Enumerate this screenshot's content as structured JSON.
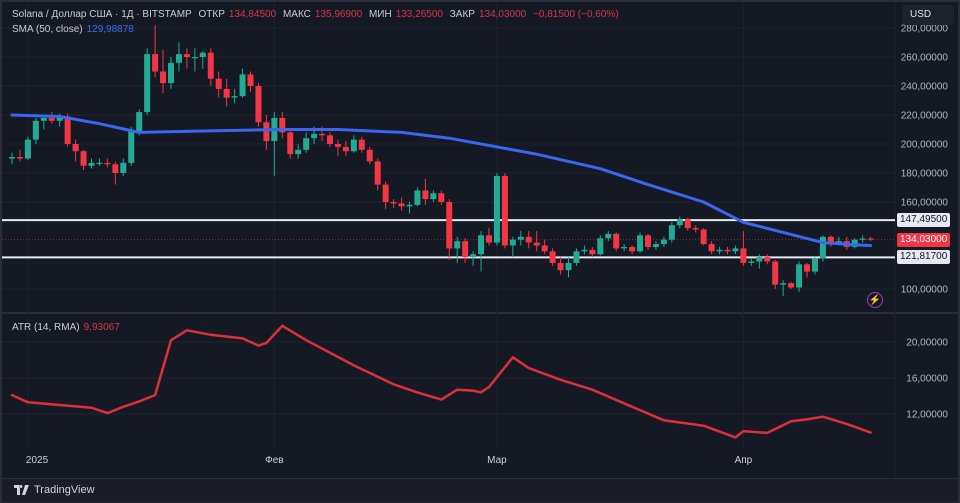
{
  "header": {
    "symbol": "Solana / Доллар США · 1Д · BITSTAMP",
    "open_label": "ОТКР",
    "open": "134,84500",
    "high_label": "МАКС",
    "high": "135,96900",
    "low_label": "МИН",
    "low": "133,26500",
    "close_label": "ЗАКР",
    "close": "134,03000",
    "change": "−0,81500 (−0,60%)",
    "sma_label": "SMA (50, close)",
    "sma_value": "129,98878",
    "atr_label": "ATR (14, RMA)",
    "atr_value": "9,93067"
  },
  "currency_button": "USD",
  "footer": {
    "logo_text": "TradingView"
  },
  "colors": {
    "up": "#22ab94",
    "down": "#f23645",
    "sma": "#3a66f0",
    "atr": "#dc2f3c",
    "background": "#151924",
    "level_line": "#e6e8ef"
  },
  "icons": {
    "alert": "lightning-icon",
    "logo": "tradingview-logo"
  },
  "chart_data": [
    {
      "type": "candlestick",
      "pane": "price",
      "ylim": [
        90,
        285
      ],
      "y_ticks": [
        100,
        160,
        180,
        200,
        220,
        240,
        260,
        280
      ],
      "y_tick_labels": [
        "100,00000",
        "160,00000",
        "180,00000",
        "200,00000",
        "220,00000",
        "240,00000",
        "260,00000",
        "280,00000"
      ],
      "x_ticks": [
        {
          "bar": 2,
          "label": "2025"
        },
        {
          "bar": 33,
          "label": "Фев"
        },
        {
          "bar": 61,
          "label": "Мар"
        },
        {
          "bar": 92,
          "label": "Апр"
        }
      ],
      "grid": true,
      "ohlc": [
        [
          190,
          194,
          186,
          191
        ],
        [
          191,
          196,
          188,
          190
        ],
        [
          190,
          205,
          189,
          203
        ],
        [
          203,
          218,
          200,
          216
        ],
        [
          216,
          220,
          210,
          218
        ],
        [
          218,
          222,
          214,
          216
        ],
        [
          216,
          221,
          212,
          219
        ],
        [
          219,
          221,
          198,
          200
        ],
        [
          200,
          203,
          188,
          195
        ],
        [
          195,
          196,
          182,
          185
        ],
        [
          185,
          190,
          183,
          187
        ],
        [
          187,
          190,
          185,
          187
        ],
        [
          187,
          190,
          184,
          186
        ],
        [
          186,
          188,
          172,
          180
        ],
        [
          180,
          190,
          178,
          187
        ],
        [
          187,
          212,
          185,
          210
        ],
        [
          208,
          224,
          206,
          222
        ],
        [
          222,
          266,
          220,
          262
        ],
        [
          262,
          282,
          246,
          250
        ],
        [
          250,
          265,
          235,
          242
        ],
        [
          242,
          260,
          238,
          256
        ],
        [
          256,
          270,
          250,
          262
        ],
        [
          262,
          266,
          252,
          260
        ],
        [
          260,
          266,
          250,
          260
        ],
        [
          260,
          264,
          252,
          263
        ],
        [
          263,
          266,
          240,
          245
        ],
        [
          245,
          250,
          232,
          238
        ],
        [
          238,
          245,
          226,
          232
        ],
        [
          232,
          238,
          228,
          233
        ],
        [
          233,
          252,
          232,
          248
        ],
        [
          248,
          250,
          236,
          240
        ],
        [
          240,
          242,
          212,
          215
        ],
        [
          215,
          220,
          196,
          202
        ],
        [
          202,
          222,
          178,
          218
        ],
        [
          218,
          222,
          204,
          208
        ],
        [
          208,
          210,
          190,
          193
        ],
        [
          193,
          200,
          190,
          196
        ],
        [
          196,
          208,
          194,
          204
        ],
        [
          204,
          212,
          200,
          207
        ],
        [
          207,
          212,
          202,
          206
        ],
        [
          206,
          208,
          198,
          200
        ],
        [
          200,
          203,
          192,
          198
        ],
        [
          198,
          202,
          192,
          195
        ],
        [
          195,
          206,
          194,
          203
        ],
        [
          203,
          205,
          194,
          196
        ],
        [
          196,
          198,
          186,
          188
        ],
        [
          188,
          190,
          168,
          172
        ],
        [
          172,
          174,
          155,
          160
        ],
        [
          160,
          162,
          156,
          159
        ],
        [
          159,
          163,
          154,
          157
        ],
        [
          157,
          160,
          152,
          158
        ],
        [
          158,
          170,
          157,
          168
        ],
        [
          168,
          176,
          158,
          162
        ],
        [
          162,
          168,
          160,
          166
        ],
        [
          166,
          168,
          158,
          160
        ],
        [
          160,
          162,
          120,
          128
        ],
        [
          128,
          136,
          118,
          133
        ],
        [
          133,
          135,
          118,
          122
        ],
        [
          122,
          126,
          116,
          124
        ],
        [
          124,
          140,
          112,
          137
        ],
        [
          137,
          142,
          130,
          132
        ],
        [
          132,
          180,
          130,
          178
        ],
        [
          178,
          180,
          128,
          130
        ],
        [
          130,
          136,
          122,
          134
        ],
        [
          134,
          140,
          130,
          136
        ],
        [
          136,
          140,
          128,
          132
        ],
        [
          132,
          140,
          126,
          130
        ],
        [
          130,
          134,
          124,
          126
        ],
        [
          126,
          128,
          116,
          118
        ],
        [
          118,
          122,
          110,
          113
        ],
        [
          113,
          122,
          108,
          118
        ],
        [
          118,
          128,
          116,
          126
        ],
        [
          126,
          130,
          124,
          127
        ],
        [
          127,
          129,
          122,
          124
        ],
        [
          124,
          137,
          123,
          135
        ],
        [
          135,
          140,
          133,
          138
        ],
        [
          138,
          139,
          126,
          128
        ],
        [
          128,
          131,
          126,
          129
        ],
        [
          129,
          130,
          124,
          126
        ],
        [
          126,
          139,
          125,
          137
        ],
        [
          137,
          138,
          127,
          129
        ],
        [
          129,
          133,
          127,
          131
        ],
        [
          131,
          136,
          129,
          134
        ],
        [
          134,
          146,
          132,
          144
        ],
        [
          144,
          150,
          142,
          148
        ],
        [
          148,
          149,
          140,
          142
        ],
        [
          142,
          144,
          139,
          141
        ],
        [
          141,
          142,
          130,
          131
        ],
        [
          131,
          133,
          124,
          126
        ],
        [
          126,
          129,
          124,
          127
        ],
        [
          127,
          129,
          124,
          126
        ],
        [
          126,
          130,
          124,
          128
        ],
        [
          128,
          140,
          116,
          118
        ],
        [
          118,
          121,
          116,
          119
        ],
        [
          119,
          124,
          114,
          122
        ],
        [
          122,
          124,
          117,
          119
        ],
        [
          119,
          120,
          100,
          103
        ],
        [
          103,
          106,
          95,
          104
        ],
        [
          104,
          105,
          100,
          101
        ],
        [
          101,
          119,
          98,
          117
        ],
        [
          117,
          118,
          108,
          112
        ],
        [
          112,
          122,
          110,
          121
        ],
        [
          121,
          137,
          119,
          136
        ],
        [
          136,
          137,
          129,
          131
        ],
        [
          131,
          136,
          130,
          133
        ],
        [
          133,
          136,
          127,
          129
        ],
        [
          129,
          135,
          128,
          134
        ],
        [
          134,
          137,
          132,
          134.845
        ],
        [
          134.845,
          135.969,
          133.265,
          134.03
        ]
      ],
      "sma": {
        "name": "SMA (50, close)",
        "samples": [
          [
            0,
            220
          ],
          [
            6,
            219
          ],
          [
            11,
            214
          ],
          [
            16,
            208
          ],
          [
            24,
            209
          ],
          [
            34,
            210
          ],
          [
            41,
            210
          ],
          [
            49,
            208
          ],
          [
            55,
            204
          ],
          [
            61,
            198
          ],
          [
            66,
            193
          ],
          [
            74,
            183
          ],
          [
            80,
            172
          ],
          [
            87,
            160
          ],
          [
            92,
            146
          ],
          [
            97,
            139
          ],
          [
            102,
            132
          ],
          [
            106,
            130.5
          ],
          [
            108,
            129.99
          ]
        ]
      },
      "levels": [
        {
          "value": 147.495,
          "label": "147,49500"
        },
        {
          "value": 121.817,
          "label": "121,81700"
        }
      ],
      "last_price": {
        "value": 134.03,
        "label": "134,03000"
      }
    },
    {
      "type": "line",
      "pane": "atr",
      "name": "ATR (14, RMA)",
      "ylim": [
        7,
        23
      ],
      "y_ticks": [
        12,
        16,
        20
      ],
      "y_tick_labels": [
        "12,00000",
        "16,00000",
        "20,00000"
      ],
      "samples": [
        [
          0,
          14.1
        ],
        [
          2,
          13.3
        ],
        [
          6,
          13
        ],
        [
          10,
          12.7
        ],
        [
          12,
          12.1
        ],
        [
          14,
          12.8
        ],
        [
          16,
          13.4
        ],
        [
          18,
          14.1
        ],
        [
          20,
          20.2
        ],
        [
          22,
          21.3
        ],
        [
          25,
          20.8
        ],
        [
          29,
          20.4
        ],
        [
          31,
          19.6
        ],
        [
          32,
          19.9
        ],
        [
          34,
          21.8
        ],
        [
          37,
          20.2
        ],
        [
          43,
          17.4
        ],
        [
          48,
          15.3
        ],
        [
          51,
          14.4
        ],
        [
          54,
          13.6
        ],
        [
          56,
          14.7
        ],
        [
          58,
          14.6
        ],
        [
          59,
          14.4
        ],
        [
          60,
          15
        ],
        [
          63,
          18.3
        ],
        [
          65,
          17.1
        ],
        [
          69,
          15.8
        ],
        [
          73,
          14.7
        ],
        [
          78,
          12.8
        ],
        [
          82,
          11.3
        ],
        [
          87,
          10.7
        ],
        [
          91,
          9.4
        ],
        [
          92,
          10.1
        ],
        [
          95,
          9.9
        ],
        [
          98,
          11.2
        ],
        [
          100,
          11.4
        ],
        [
          102,
          11.7
        ],
        [
          105,
          10.9
        ],
        [
          108,
          9.93
        ]
      ]
    }
  ]
}
